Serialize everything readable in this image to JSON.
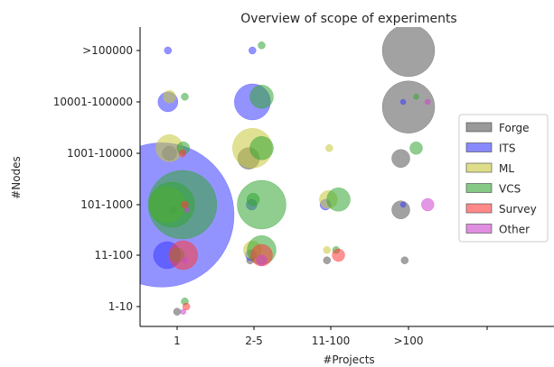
{
  "chart_data": {
    "type": "scatter",
    "title": "Overview of scope of experiments",
    "xlabel": "#Projects",
    "ylabel": "#Nodes",
    "x_categories": [
      "1",
      "2-5",
      "11-100",
      ">100"
    ],
    "y_categories": [
      "1-10",
      "11-100",
      "101-1000",
      "1001-10000",
      "10001-100000",
      ">100000"
    ],
    "legend": {
      "position": "right",
      "items": [
        {
          "name": "Forge",
          "color": "#555555"
        },
        {
          "name": "ITS",
          "color": "#3a3aff"
        },
        {
          "name": "ML",
          "color": "#c8c83c"
        },
        {
          "name": "VCS",
          "color": "#33a533"
        },
        {
          "name": "Survey",
          "color": "#ff3a3a"
        },
        {
          "name": "Other",
          "color": "#cc44cc"
        }
      ]
    },
    "series": [
      {
        "name": "Forge",
        "color": "#555555",
        "points": [
          {
            "x": ">100",
            "y": ">100000",
            "dx": 0.0,
            "dy": 0.0,
            "size": 29
          },
          {
            "x": ">100",
            "y": "10001-100000",
            "dx": 0.0,
            "dy": -0.1,
            "size": 29
          },
          {
            "x": ">100",
            "y": "1001-10000",
            "dx": -0.1,
            "dy": -0.1,
            "size": 10
          },
          {
            "x": ">100",
            "y": "101-1000",
            "dx": -0.1,
            "dy": -0.1,
            "size": 10
          },
          {
            "x": ">100",
            "y": "11-100",
            "dx": -0.05,
            "dy": -0.1,
            "size": 4
          },
          {
            "x": "11-100",
            "y": "11-100",
            "dx": -0.05,
            "dy": -0.1,
            "size": 4
          },
          {
            "x": "1",
            "y": "101-1000",
            "dx": -0.05,
            "dy": -0.1,
            "size": 4
          },
          {
            "x": "2-5",
            "y": "1001-10000",
            "dx": -0.07,
            "dy": -0.1,
            "size": 12
          },
          {
            "x": "2-5",
            "y": "11-100",
            "dx": -0.05,
            "dy": -0.1,
            "size": 4
          },
          {
            "x": "1",
            "y": "1001-10000",
            "dx": -0.1,
            "dy": 0.0,
            "size": 8
          },
          {
            "x": "1",
            "y": "1-10",
            "dx": 0.0,
            "dy": -0.1,
            "size": 4
          }
        ]
      },
      {
        "name": "ITS",
        "color": "#3a3aff",
        "points": [
          {
            "x": "1",
            "y": "101-1000",
            "dx": -0.2,
            "dy": -0.2,
            "size": 80
          },
          {
            "x": "1",
            "y": "11-100",
            "dx": -0.13,
            "dy": 0.0,
            "size": 15
          },
          {
            "x": "1",
            "y": "10001-100000",
            "dx": -0.12,
            "dy": 0.0,
            "size": 11
          },
          {
            "x": "1",
            "y": ">100000",
            "dx": -0.12,
            "dy": 0.0,
            "size": 4
          },
          {
            "x": "2-5",
            "y": "10001-100000",
            "dx": -0.02,
            "dy": 0.0,
            "size": 20
          },
          {
            "x": "2-5",
            "y": ">100000",
            "dx": -0.02,
            "dy": 0.0,
            "size": 4
          },
          {
            "x": "2-5",
            "y": "101-1000",
            "dx": -0.03,
            "dy": 0.0,
            "size": 6
          },
          {
            "x": "2-5",
            "y": "11-100",
            "dx": -0.04,
            "dy": 0.0,
            "size": 6
          },
          {
            "x": "11-100",
            "y": "101-1000",
            "dx": -0.07,
            "dy": 0.0,
            "size": 6
          },
          {
            "x": ">100",
            "y": "10001-100000",
            "dx": -0.07,
            "dy": 0.0,
            "size": 3
          },
          {
            "x": ">100",
            "y": "101-1000",
            "dx": -0.07,
            "dy": 0.0,
            "size": 3
          }
        ]
      },
      {
        "name": "ML",
        "color": "#c8c83c",
        "points": [
          {
            "x": "1",
            "y": "1001-10000",
            "dx": -0.1,
            "dy": 0.1,
            "size": 15
          },
          {
            "x": "1",
            "y": "101-1000",
            "dx": -0.13,
            "dy": 0.0,
            "size": 20
          },
          {
            "x": "1",
            "y": "10001-100000",
            "dx": -0.1,
            "dy": 0.1,
            "size": 7
          },
          {
            "x": "2-5",
            "y": "1001-10000",
            "dx": -0.02,
            "dy": 0.1,
            "size": 22
          },
          {
            "x": "2-5",
            "y": "11-100",
            "dx": -0.02,
            "dy": 0.1,
            "size": 10
          },
          {
            "x": "11-100",
            "y": "101-1000",
            "dx": -0.03,
            "dy": 0.1,
            "size": 10
          },
          {
            "x": "11-100",
            "y": "1001-10000",
            "dx": -0.02,
            "dy": 0.1,
            "size": 4
          },
          {
            "x": "11-100",
            "y": "11-100",
            "dx": -0.05,
            "dy": 0.1,
            "size": 4
          }
        ]
      },
      {
        "name": "VCS",
        "color": "#33a533",
        "points": [
          {
            "x": "1",
            "y": "101-1000",
            "dx": 0.07,
            "dy": 0.0,
            "size": 38
          },
          {
            "x": "1",
            "y": "101-1000",
            "dx": -0.07,
            "dy": 0.0,
            "size": 25
          },
          {
            "x": "1",
            "y": "11-100",
            "dx": 0.0,
            "dy": 0.0,
            "size": 8
          },
          {
            "x": "1",
            "y": "1001-10000",
            "dx": 0.08,
            "dy": 0.1,
            "size": 7
          },
          {
            "x": "1",
            "y": "10001-100000",
            "dx": 0.1,
            "dy": 0.1,
            "size": 4
          },
          {
            "x": "1",
            "y": "1-10",
            "dx": 0.1,
            "dy": 0.1,
            "size": 4
          },
          {
            "x": "2-5",
            "y": ">100000",
            "dx": 0.1,
            "dy": 0.1,
            "size": 4
          },
          {
            "x": "2-5",
            "y": "10001-100000",
            "dx": 0.1,
            "dy": 0.1,
            "size": 13
          },
          {
            "x": "2-5",
            "y": "1001-10000",
            "dx": 0.1,
            "dy": 0.1,
            "size": 13
          },
          {
            "x": "2-5",
            "y": "101-1000",
            "dx": 0.1,
            "dy": 0.0,
            "size": 27
          },
          {
            "x": "2-5",
            "y": "101-1000",
            "dx": -0.01,
            "dy": 0.1,
            "size": 7
          },
          {
            "x": "2-5",
            "y": "11-100",
            "dx": 0.1,
            "dy": 0.1,
            "size": 16
          },
          {
            "x": "11-100",
            "y": "101-1000",
            "dx": 0.1,
            "dy": 0.1,
            "size": 13
          },
          {
            "x": "11-100",
            "y": "11-100",
            "dx": 0.07,
            "dy": 0.1,
            "size": 4
          },
          {
            "x": ">100",
            "y": "1001-10000",
            "dx": 0.1,
            "dy": 0.1,
            "size": 7
          },
          {
            "x": ">100",
            "y": "10001-100000",
            "dx": 0.1,
            "dy": 0.1,
            "size": 3
          }
        ]
      },
      {
        "name": "Survey",
        "color": "#ff3a3a",
        "points": [
          {
            "x": "1",
            "y": "11-100",
            "dx": 0.08,
            "dy": 0.0,
            "size": 16
          },
          {
            "x": "2-5",
            "y": "11-100",
            "dx": 0.1,
            "dy": 0.0,
            "size": 12
          },
          {
            "x": "11-100",
            "y": "11-100",
            "dx": 0.1,
            "dy": 0.0,
            "size": 7
          },
          {
            "x": "1",
            "y": "1001-10000",
            "dx": 0.07,
            "dy": 0.0,
            "size": 4
          },
          {
            "x": "1",
            "y": "101-1000",
            "dx": 0.1,
            "dy": 0.0,
            "size": 4
          },
          {
            "x": "1",
            "y": "1-10",
            "dx": 0.12,
            "dy": 0.0,
            "size": 4
          }
        ]
      },
      {
        "name": "Other",
        "color": "#cc44cc",
        "points": [
          {
            "x": ">100",
            "y": "101-1000",
            "dx": 0.25,
            "dy": 0.0,
            "size": 7
          },
          {
            "x": ">100",
            "y": "10001-100000",
            "dx": 0.25,
            "dy": 0.0,
            "size": 3
          },
          {
            "x": "2-5",
            "y": "11-100",
            "dx": 0.1,
            "dy": -0.1,
            "size": 6
          },
          {
            "x": "1",
            "y": "101-1000",
            "dx": 0.13,
            "dy": -0.1,
            "size": 3
          },
          {
            "x": "1",
            "y": "11-100",
            "dx": 0.1,
            "dy": -0.1,
            "size": 3
          },
          {
            "x": "1",
            "y": "1-10",
            "dx": 0.08,
            "dy": -0.1,
            "size": 3
          }
        ]
      }
    ]
  }
}
